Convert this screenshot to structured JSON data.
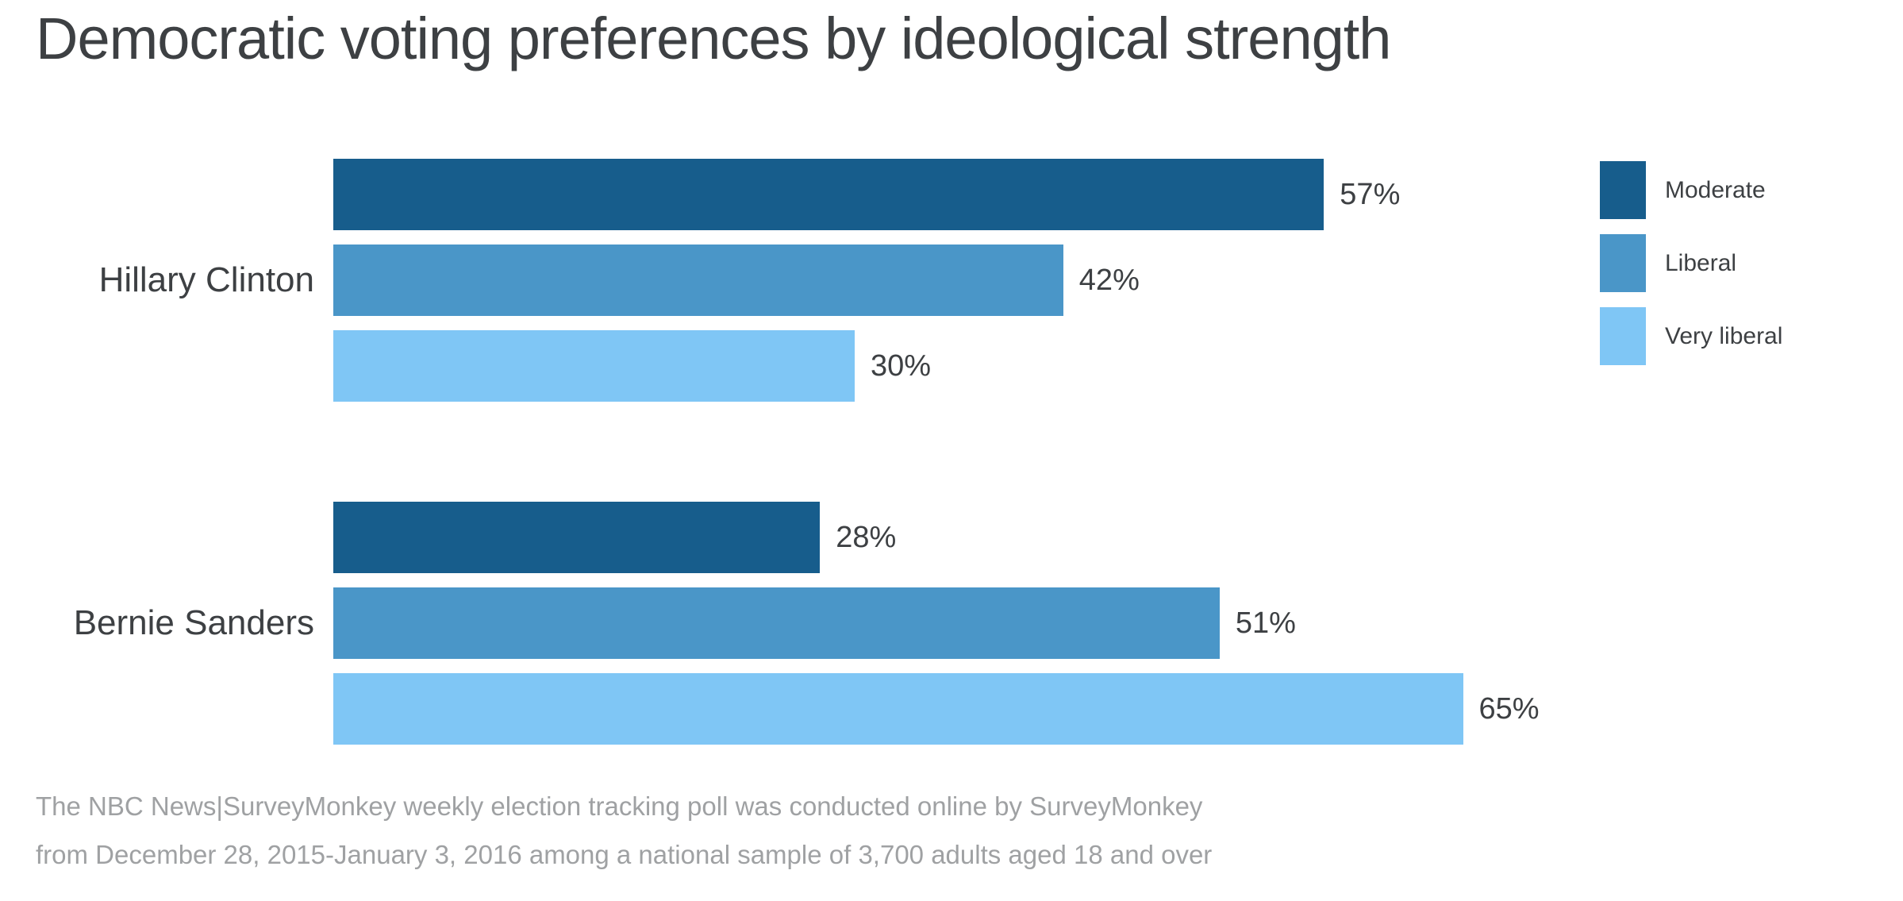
{
  "title": "Democratic voting preferences by ideological strength",
  "chart_data": {
    "type": "bar",
    "orientation": "horizontal",
    "title": "Democratic voting preferences by ideological strength",
    "categories": [
      "Hillary Clinton",
      "Bernie Sanders"
    ],
    "series": [
      {
        "name": "Moderate",
        "color": "#175d8c",
        "values": [
          57,
          28
        ]
      },
      {
        "name": "Liberal",
        "color": "#4a96c8",
        "values": [
          42,
          51
        ]
      },
      {
        "name": "Very liberal",
        "color": "#7fc6f5",
        "values": [
          30,
          65
        ]
      }
    ],
    "value_suffix": "%",
    "xlim": [
      0,
      100
    ],
    "grid": false,
    "legend_position": "right",
    "value_labels": "outside-end"
  },
  "legend": {
    "items": [
      {
        "label": "Moderate",
        "color": "#175d8c"
      },
      {
        "label": "Liberal",
        "color": "#4a96c8"
      },
      {
        "label": "Very liberal",
        "color": "#7fc6f5"
      }
    ]
  },
  "footnote": {
    "line1": "The NBC News|SurveyMonkey weekly election tracking poll was conducted online by SurveyMonkey",
    "line2": "from December 28, 2015-January 3, 2016 among a national sample of 3,700 adults aged 18 and over"
  }
}
